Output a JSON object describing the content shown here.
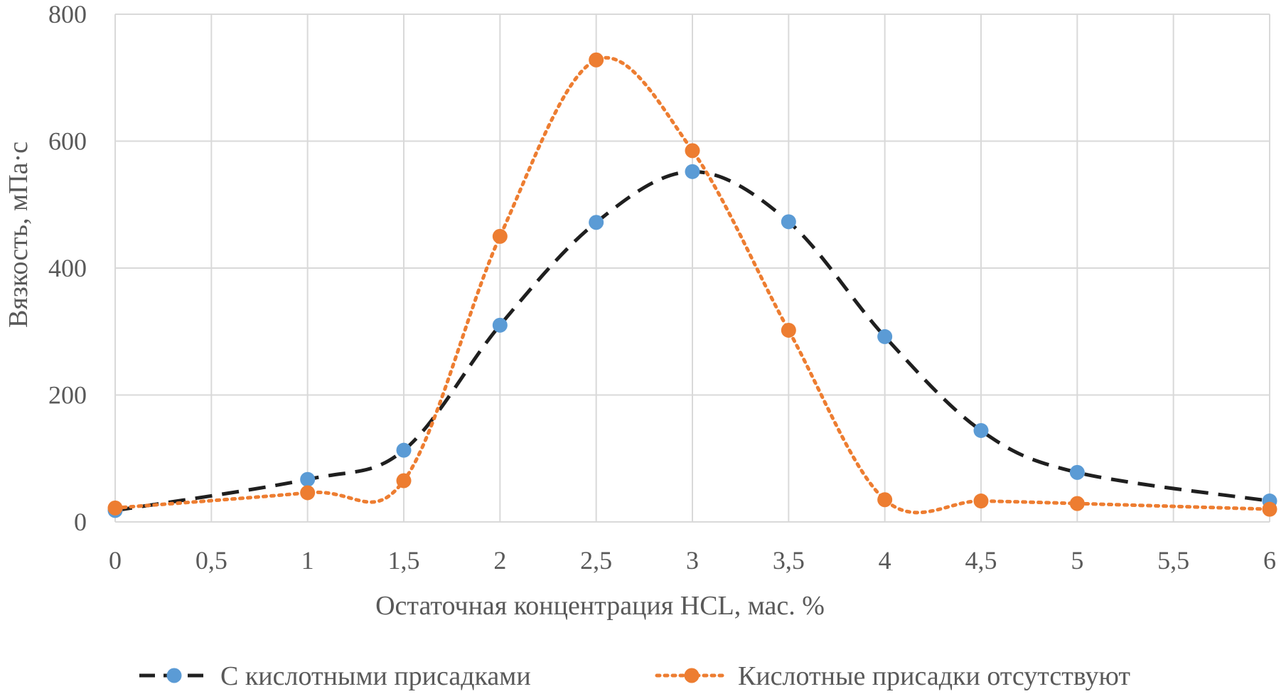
{
  "chart_data": {
    "type": "line",
    "title": "",
    "xlabel": "Остаточная концентрация HCL, мас. %",
    "ylabel": "Вязкость, мПа·с",
    "xlim": [
      0,
      6
    ],
    "ylim": [
      0,
      800
    ],
    "x_ticks": [
      0,
      0.5,
      1,
      1.5,
      2,
      2.5,
      3,
      3.5,
      4,
      4.5,
      5,
      5.5,
      6
    ],
    "x_tick_labels": [
      "0",
      "0,5",
      "1",
      "1,5",
      "2",
      "2,5",
      "3",
      "3,5",
      "4",
      "4,5",
      "5",
      "5,5",
      "6"
    ],
    "y_ticks": [
      0,
      200,
      400,
      600,
      800
    ],
    "y_tick_labels": [
      "0",
      "200",
      "400",
      "600",
      "800"
    ],
    "grid": true,
    "legend_position": "bottom",
    "series": [
      {
        "name": "С кислотными присадками",
        "color": "#5b9bd5",
        "line_color": "#1f1f1f",
        "line_style": "dashed",
        "x": [
          0,
          1,
          1.5,
          2,
          2.5,
          3,
          3.5,
          4,
          4.5,
          5,
          6
        ],
        "y": [
          18,
          67,
          113,
          310,
          472,
          552,
          473,
          292,
          144,
          78,
          33
        ]
      },
      {
        "name": "Кислотные присадки отсутствуют",
        "color": "#ed7d31",
        "line_color": "#ed7d31",
        "line_style": "dotted",
        "x": [
          0,
          1,
          1.5,
          2,
          2.5,
          3,
          3.5,
          4,
          4.5,
          5,
          6
        ],
        "y": [
          22,
          46,
          65,
          450,
          728,
          585,
          302,
          35,
          33,
          29,
          20
        ]
      }
    ]
  }
}
